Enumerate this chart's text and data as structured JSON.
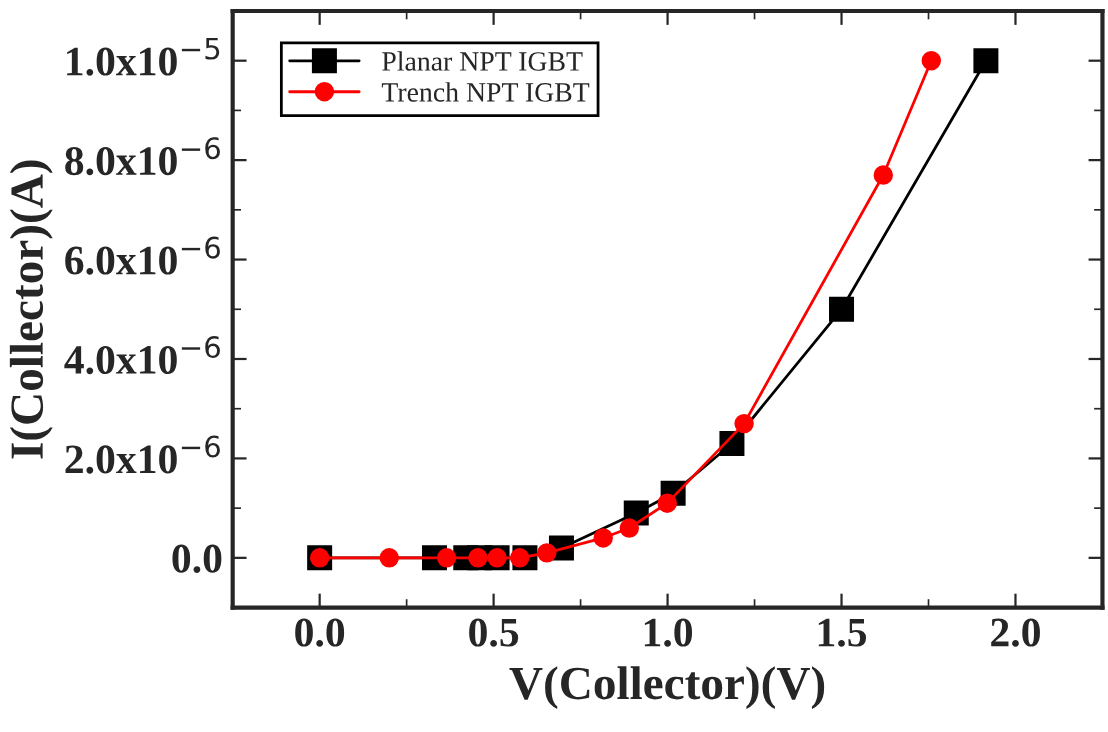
{
  "chart_data": {
    "type": "line",
    "xlabel": "V(Collector)(V)",
    "ylabel": "I(Collector)(A)",
    "xlim": [
      -0.25,
      2.25
    ],
    "xticks": [
      {
        "value": 0,
        "label": "0.0"
      },
      0.5,
      {
        "value": 1,
        "label": "1.0"
      },
      1.5,
      {
        "value": 2,
        "label": "2.0"
      }
    ],
    "ylim": [
      -1e-06,
      1.1e-05
    ],
    "yticks": [
      {
        "value": 0,
        "label": "0.0"
      },
      {
        "value": 2e-06,
        "label": "2.0x10$^{−6}$"
      },
      {
        "value": 4e-06,
        "label": "4.0x10$^{−6}$"
      },
      {
        "value": 6e-06,
        "label": "6.0x10$^{−6}$"
      },
      {
        "value": 8e-06,
        "label": "8.0x10$^{−6}$"
      },
      {
        "value": 1e-05,
        "label": "1.0x10$^{−5}$"
      }
    ],
    "grid": false,
    "legend": "top left",
    "series": [
      {
        "name": "Planar NPT IGBT",
        "color": "#000000",
        "marker": "square",
        "x": [
          0,
          0.33,
          0.42,
          0.46,
          0.51,
          0.59,
          0.695,
          0.91,
          1.016,
          1.185,
          1.5,
          1.915
        ],
        "values": [
          0,
          0,
          0,
          0,
          0,
          0,
          2e-07,
          9e-07,
          1.3e-06,
          2.3e-06,
          5e-06,
          1e-05
        ]
      },
      {
        "name": "Trench NPT IGBT",
        "color": "#ff0000",
        "marker": "circle",
        "x": [
          0,
          0.2,
          0.365,
          0.455,
          0.51,
          0.575,
          0.653,
          0.815,
          0.89,
          0.999,
          1.22,
          1.62,
          1.758
        ],
        "values": [
          0,
          0,
          0,
          0,
          0,
          0,
          1e-07,
          4e-07,
          6e-07,
          1.1e-06,
          2.7e-06,
          7.7e-06,
          1e-05
        ]
      }
    ]
  }
}
